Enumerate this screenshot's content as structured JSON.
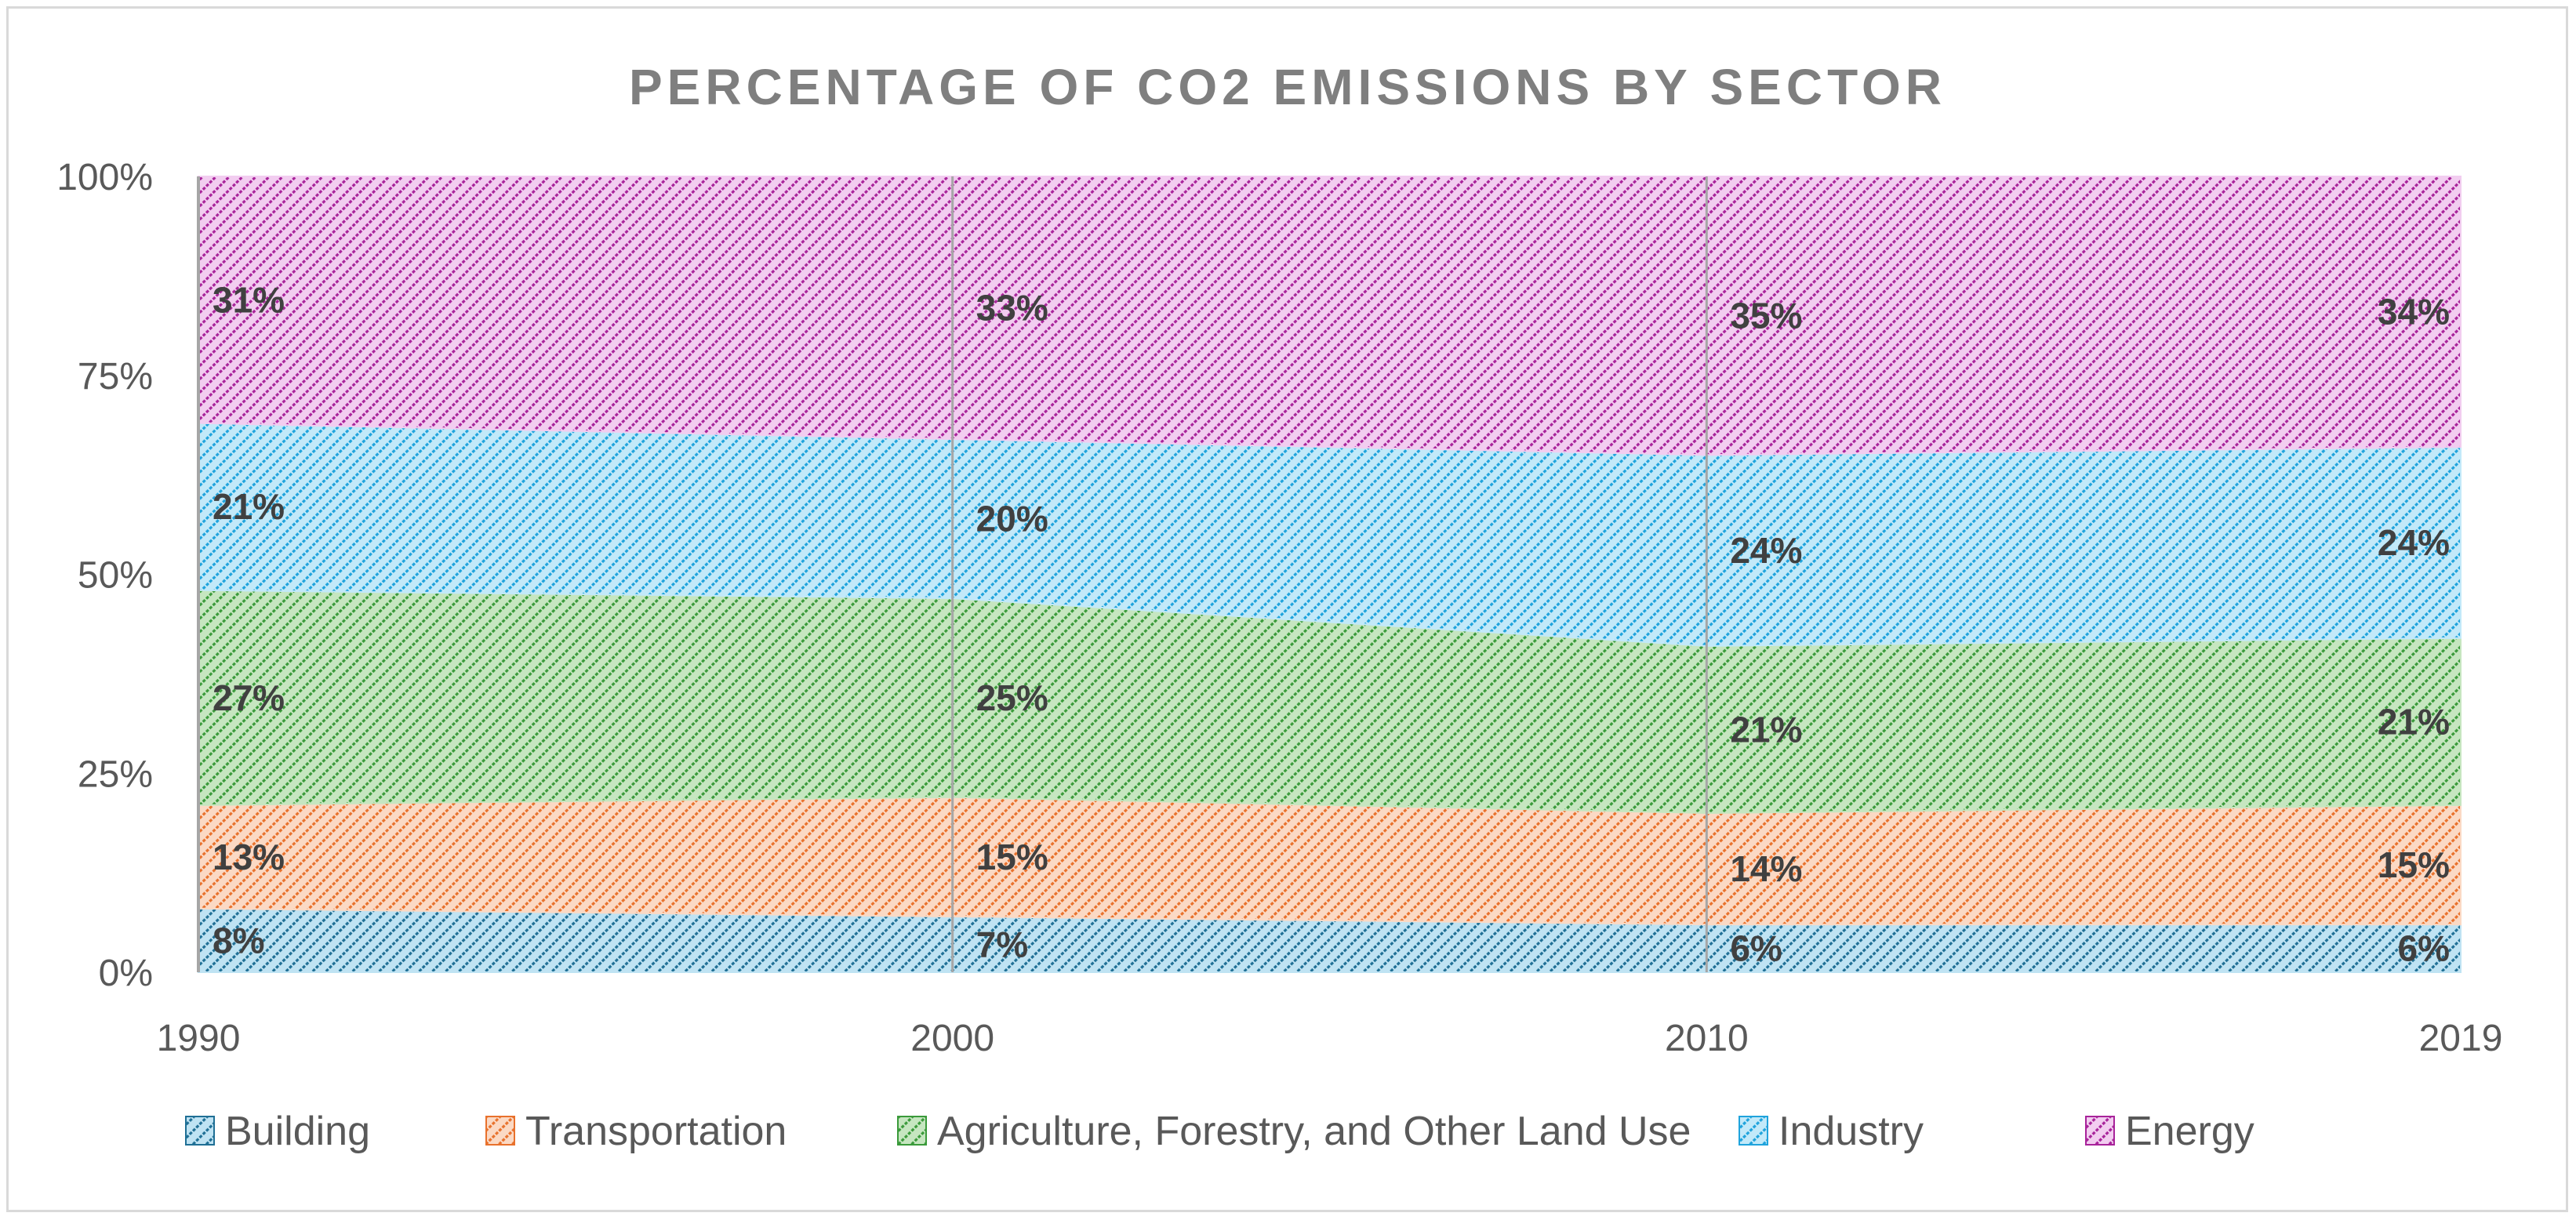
{
  "chart_data": {
    "type": "area",
    "stacked": "percent",
    "title": "PERCENTAGE OF CO2 EMISSIONS BY SECTOR",
    "xlabel": "",
    "ylabel": "",
    "categories": [
      "1990",
      "2000",
      "2010",
      "2019"
    ],
    "yticks": [
      "0%",
      "25%",
      "50%",
      "75%",
      "100%"
    ],
    "ylim": [
      0,
      100
    ],
    "legend_position": "bottom",
    "series": [
      {
        "name": "Building",
        "values": [
          8,
          7,
          6,
          6
        ],
        "labels": [
          "8%",
          "7%",
          "6%",
          "6%"
        ],
        "color": "#1f6f95",
        "fill": "#bfe3f3"
      },
      {
        "name": "Transportation",
        "values": [
          13,
          15,
          14,
          15
        ],
        "labels": [
          "13%",
          "15%",
          "14%",
          "15%"
        ],
        "color": "#e8712c",
        "fill": "#fbd9c4"
      },
      {
        "name": "Agriculture, Forestry, and Other Land Use",
        "values": [
          27,
          25,
          21,
          21
        ],
        "labels": [
          "27%",
          "25%",
          "21%",
          "21%"
        ],
        "color": "#3a9a3a",
        "fill": "#c6e6c0"
      },
      {
        "name": "Industry",
        "values": [
          21,
          20,
          24,
          24
        ],
        "labels": [
          "21%",
          "20%",
          "24%",
          "24%"
        ],
        "color": "#1fa3dc",
        "fill": "#c2e9f9"
      },
      {
        "name": "Energy",
        "values": [
          31,
          33,
          35,
          34
        ],
        "labels": [
          "31%",
          "33%",
          "35%",
          "34%"
        ],
        "color": "#a8239a",
        "fill": "#f2cdf0"
      }
    ]
  }
}
